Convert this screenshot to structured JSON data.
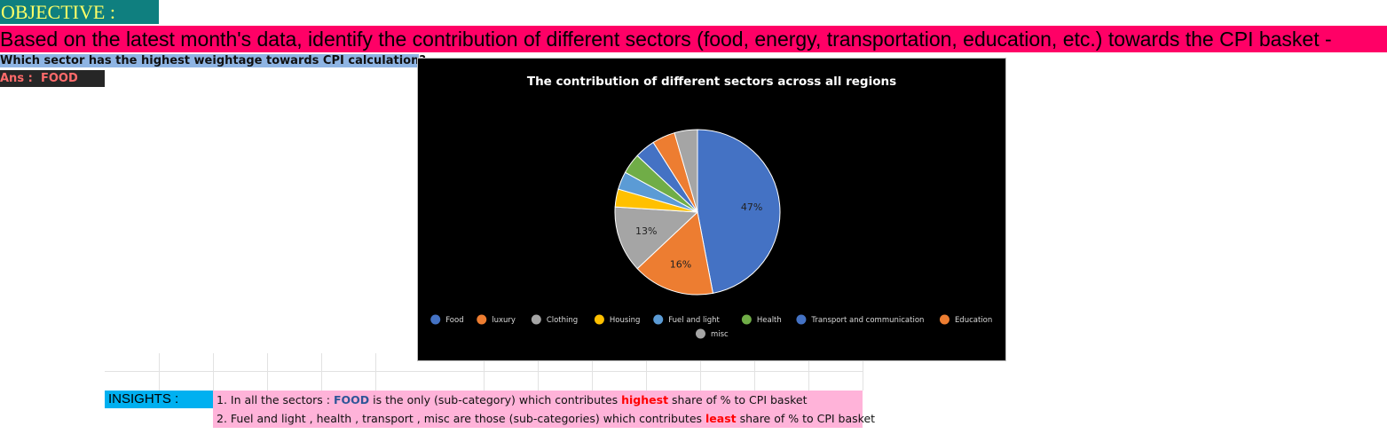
{
  "header": {
    "objective": "OBJECTIVE :",
    "banner": "Based on the latest month's data, identify the contribution of different sectors (food, energy, transportation, education, etc.) towards the CPI basket -",
    "question": "Which sector has the highest weightage towards CPI calculation",
    "question_mark": "?",
    "answer_label": "Ans :",
    "answer_value": "FOOD"
  },
  "colors": {
    "objective_bg": "#0f7f7f",
    "banner_bg": "#ff0066",
    "insight_bg": "#ffb3d9",
    "insight_label_bg": "#00b0f0"
  },
  "chart_data": {
    "type": "pie",
    "title": "The contribution of different sectors across all regions",
    "categories": [
      "Food",
      "luxury",
      "Clothing",
      "Housing",
      "Fuel and light",
      "Health",
      "Transport and communication",
      "Education",
      "misc"
    ],
    "values": [
      47,
      16,
      13,
      3.5,
      3.5,
      4,
      4,
      4.5,
      4.5
    ],
    "colors": [
      "#4472c4",
      "#ed7d31",
      "#a5a5a5",
      "#ffc000",
      "#5b9bd5",
      "#70ad47",
      "#4472c4",
      "#ed7d31",
      "#a5a5a5"
    ],
    "data_labels": [
      "47%",
      "16%",
      "13%",
      "",
      "",
      "",
      "",
      "",
      ""
    ],
    "legend_position": "bottom"
  },
  "insights": {
    "label": "INSIGHTS :",
    "line1": {
      "prefix": "1. In all the sectors : ",
      "keyword": "FOOD",
      "middle": " is the only (sub-category) which contributes ",
      "emphasis": "highest",
      "suffix": " share of % to CPI basket"
    },
    "line2": {
      "prefix": "2. Fuel and light , health , transport , misc are those (sub-categories) which contributes ",
      "emphasis": "least",
      "suffix": " share of % to CPI basket"
    }
  }
}
